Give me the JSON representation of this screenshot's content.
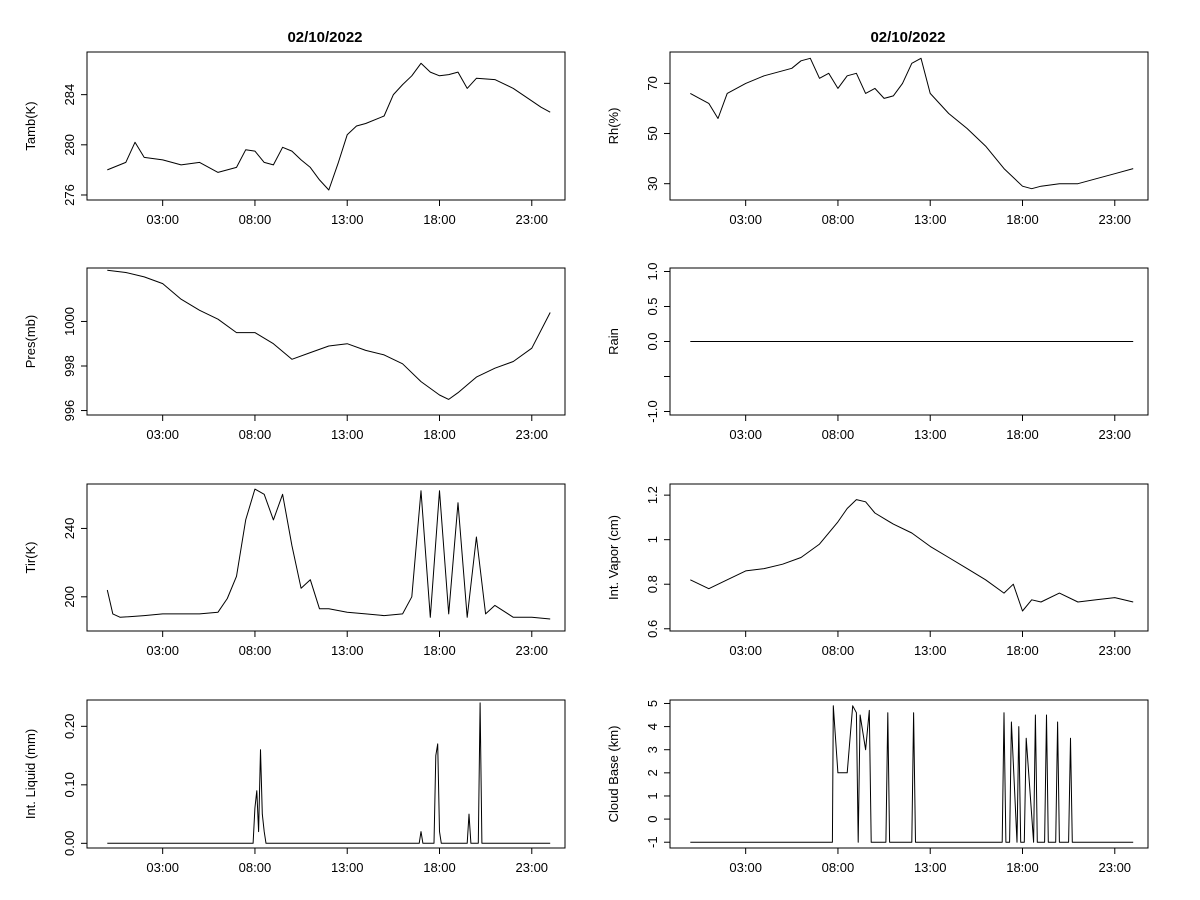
{
  "figure": {
    "left_title": "02/10/2022",
    "right_title": "02/10/2022"
  },
  "chart_data": [
    {
      "type": "line",
      "id": "tamb",
      "ylabel": "Tamb(K)",
      "xlim": [
        -1.1,
        24.8
      ],
      "ylim": [
        275.6,
        287.4
      ],
      "yticks": [
        276,
        280,
        284
      ],
      "xticks": [
        "03:00",
        "08:00",
        "13:00",
        "18:00",
        "23:00"
      ],
      "xtick_hours": [
        3,
        8,
        13,
        18,
        23
      ],
      "series": [
        {
          "x": [
            0,
            1,
            1.5,
            2,
            3,
            4,
            5,
            6,
            7,
            7.5,
            8,
            8.5,
            9,
            9.5,
            10,
            10.5,
            11,
            11.5,
            12,
            12.5,
            13,
            13.5,
            14,
            15,
            15.5,
            16,
            16.5,
            17,
            17.5,
            18,
            18.5,
            19,
            19.5,
            20,
            21,
            22,
            23,
            23.5,
            24
          ],
          "y": [
            278,
            278.6,
            280.2,
            279,
            278.8,
            278.4,
            278.6,
            277.8,
            278.2,
            279.6,
            279.5,
            278.6,
            278.4,
            279.8,
            279.5,
            278.8,
            278.2,
            277.2,
            276.4,
            278.5,
            280.8,
            281.5,
            281.7,
            282.3,
            284,
            284.8,
            285.5,
            286.5,
            285.8,
            285.5,
            285.6,
            285.8,
            284.5,
            285.3,
            285.2,
            284.5,
            283.5,
            283,
            282.6
          ]
        }
      ]
    },
    {
      "type": "line",
      "id": "rh",
      "ylabel": "Rh(%)",
      "xlim": [
        -1.1,
        24.8
      ],
      "ylim": [
        23.5,
        82.5
      ],
      "yticks": [
        30,
        50,
        70
      ],
      "xticks": [
        "03:00",
        "08:00",
        "13:00",
        "18:00",
        "23:00"
      ],
      "xtick_hours": [
        3,
        8,
        13,
        18,
        23
      ],
      "series": [
        {
          "x": [
            0,
            0.5,
            1,
            1.5,
            2,
            3,
            4,
            5,
            5.5,
            6,
            6.5,
            7,
            7.5,
            8,
            8.5,
            9,
            9.5,
            10,
            10.5,
            11,
            11.5,
            12,
            12.5,
            13,
            14,
            15,
            16,
            17,
            18,
            18.5,
            19,
            20,
            21,
            22,
            23,
            24
          ],
          "y": [
            66,
            64,
            62,
            56,
            66,
            70,
            73,
            75,
            76,
            79,
            80,
            72,
            74,
            68,
            73,
            74,
            66,
            68,
            64,
            65,
            70,
            78,
            80,
            66,
            58,
            52,
            45,
            36,
            29,
            28,
            29,
            30,
            30,
            32,
            34,
            36
          ]
        }
      ]
    },
    {
      "type": "line",
      "id": "pres",
      "ylabel": "Pres(mb)",
      "xlim": [
        -1.1,
        24.8
      ],
      "ylim": [
        995.8,
        1002.4
      ],
      "yticks": [
        996,
        998,
        1000
      ],
      "xticks": [
        "03:00",
        "08:00",
        "13:00",
        "18:00",
        "23:00"
      ],
      "xtick_hours": [
        3,
        8,
        13,
        18,
        23
      ],
      "series": [
        {
          "x": [
            0,
            1,
            2,
            3,
            4,
            5,
            6,
            7,
            8,
            9,
            10,
            11,
            12,
            13,
            14,
            15,
            16,
            17,
            18,
            18.5,
            19,
            20,
            21,
            22,
            23,
            24
          ],
          "y": [
            1002.3,
            1002.2,
            1002,
            1001.7,
            1001,
            1000.5,
            1000.1,
            999.5,
            999.5,
            999,
            998.3,
            998.6,
            998.9,
            999,
            998.7,
            998.5,
            998.1,
            997.3,
            996.7,
            996.5,
            996.8,
            997.5,
            997.9,
            998.2,
            998.8,
            1000.4
          ]
        }
      ]
    },
    {
      "type": "line",
      "id": "rain",
      "ylabel": "Rain",
      "xlim": [
        -1.1,
        24.8
      ],
      "ylim": [
        -1.05,
        1.05
      ],
      "yticks": [
        -1.0,
        -0.5,
        0.0,
        0.5,
        1.0
      ],
      "ytick_labels": [
        "-1.0",
        "",
        "0.0",
        "0.5",
        "1.0"
      ],
      "xticks": [
        "03:00",
        "08:00",
        "13:00",
        "18:00",
        "23:00"
      ],
      "xtick_hours": [
        3,
        8,
        13,
        18,
        23
      ],
      "series": [
        {
          "x": [
            0,
            24
          ],
          "y": [
            0,
            0
          ]
        }
      ]
    },
    {
      "type": "line",
      "id": "tir",
      "ylabel": "Tir(K)",
      "xlim": [
        -1.1,
        24.8
      ],
      "ylim": [
        180,
        266
      ],
      "yticks": [
        200,
        240
      ],
      "xticks": [
        "03:00",
        "08:00",
        "13:00",
        "18:00",
        "23:00"
      ],
      "xtick_hours": [
        3,
        8,
        13,
        18,
        23
      ],
      "series": [
        {
          "x": [
            0,
            0.3,
            0.7,
            2,
            3,
            4,
            5,
            6,
            6.5,
            7,
            7.5,
            8,
            8.5,
            9,
            9.5,
            10,
            10.5,
            11,
            11.5,
            12,
            13,
            14,
            15,
            16,
            16.5,
            17,
            17.5,
            18,
            18.5,
            19,
            19.5,
            20,
            20.5,
            21,
            22,
            23,
            24
          ],
          "y": [
            204,
            190,
            188,
            189,
            190,
            190,
            190,
            191,
            199,
            212,
            245,
            263,
            260,
            245,
            260,
            230,
            205,
            210,
            193,
            193,
            191,
            190,
            189,
            190,
            200,
            262,
            188,
            262,
            190,
            255,
            188,
            235,
            190,
            195,
            188,
            188,
            187
          ]
        }
      ]
    },
    {
      "type": "line",
      "id": "vapor",
      "ylabel": "Int. Vapor (cm)",
      "xlim": [
        -1.1,
        24.8
      ],
      "ylim": [
        0.59,
        1.25
      ],
      "yticks": [
        0.6,
        0.8,
        1.0,
        1.2
      ],
      "xticks": [
        "03:00",
        "08:00",
        "13:00",
        "18:00",
        "23:00"
      ],
      "xtick_hours": [
        3,
        8,
        13,
        18,
        23
      ],
      "series": [
        {
          "x": [
            0,
            1,
            2,
            3,
            4,
            5,
            6,
            7,
            8,
            8.5,
            9,
            9.5,
            10,
            11,
            12,
            13,
            14,
            15,
            16,
            17,
            17.5,
            18,
            18.5,
            19,
            20,
            21,
            22,
            23,
            24
          ],
          "y": [
            0.82,
            0.78,
            0.82,
            0.86,
            0.87,
            0.89,
            0.92,
            0.98,
            1.08,
            1.14,
            1.18,
            1.17,
            1.12,
            1.07,
            1.03,
            0.97,
            0.92,
            0.87,
            0.82,
            0.76,
            0.8,
            0.68,
            0.73,
            0.72,
            0.76,
            0.72,
            0.73,
            0.74,
            0.72
          ]
        }
      ]
    },
    {
      "type": "line",
      "id": "liquid",
      "ylabel": "Int. Liquid (mm)",
      "xlim": [
        -1.1,
        24.8
      ],
      "ylim": [
        -0.008,
        0.245
      ],
      "yticks": [
        0.0,
        0.1,
        0.2
      ],
      "ytick_labels": [
        "0.00",
        "0.10",
        "0.20"
      ],
      "xticks": [
        "03:00",
        "08:00",
        "13:00",
        "18:00",
        "23:00"
      ],
      "xtick_hours": [
        3,
        8,
        13,
        18,
        23
      ],
      "series": [
        {
          "x": [
            0,
            7.9,
            8,
            8.1,
            8.2,
            8.3,
            8.4,
            8.5,
            8.6,
            16.9,
            17,
            17.1,
            17.7,
            17.8,
            17.9,
            18,
            18.1,
            19.5,
            19.6,
            19.7,
            20.1,
            20.2,
            20.3,
            24
          ],
          "y": [
            0,
            0,
            0.06,
            0.09,
            0.02,
            0.16,
            0.05,
            0.02,
            0,
            0,
            0.02,
            0,
            0,
            0.15,
            0.17,
            0.02,
            0,
            0,
            0.05,
            0,
            0,
            0.24,
            0,
            0
          ]
        }
      ]
    },
    {
      "type": "line",
      "id": "cloud",
      "ylabel": "Cloud Base (km)",
      "xlim": [
        -1.1,
        24.8
      ],
      "ylim": [
        -1.25,
        5.15
      ],
      "yticks": [
        -1,
        0,
        1,
        2,
        3,
        4,
        5
      ],
      "xticks": [
        "03:00",
        "08:00",
        "13:00",
        "18:00",
        "23:00"
      ],
      "xtick_hours": [
        3,
        8,
        13,
        18,
        23
      ],
      "series": [
        {
          "x": [
            0,
            7.7,
            7.75,
            8,
            8.5,
            8.8,
            9,
            9.1,
            9.2,
            9.5,
            9.7,
            9.8,
            9.9,
            10.6,
            10.7,
            10.8,
            12,
            12.1,
            12.2,
            16.9,
            17,
            17.1,
            17.3,
            17.4,
            17.7,
            17.8,
            17.9,
            18.1,
            18.2,
            18.6,
            18.7,
            18.8,
            19.2,
            19.3,
            19.4,
            19.8,
            19.9,
            20,
            20.5,
            20.6,
            20.7,
            24
          ],
          "y": [
            -1,
            -1,
            4.9,
            2,
            2,
            4.9,
            4.6,
            -1,
            4.5,
            3,
            4.7,
            -1,
            -1,
            -1,
            4.6,
            -1,
            -1,
            4.6,
            -1,
            -1,
            4.6,
            -1,
            -1,
            4.2,
            -1,
            4,
            -1,
            -1,
            3.5,
            -1,
            4.5,
            -1,
            -1,
            4.5,
            -1,
            -1,
            4.2,
            -1,
            -1,
            3.5,
            -1,
            -1
          ]
        }
      ]
    }
  ]
}
